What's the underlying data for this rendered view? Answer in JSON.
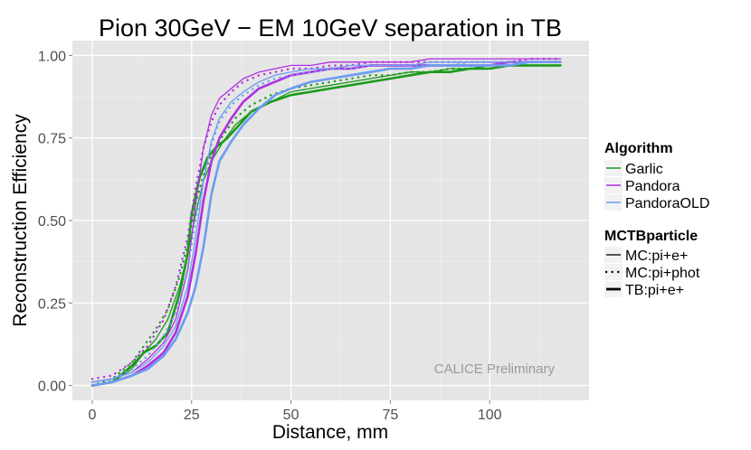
{
  "chart_data": {
    "type": "line",
    "title": "Pion 30GeV − EM 10GeV separation in TB",
    "xlabel": "Distance, mm",
    "ylabel": "Reconstruction Efficiency",
    "xlim": [
      -5,
      125
    ],
    "ylim": [
      -0.045,
      1.045
    ],
    "x_ticks": [
      0,
      25,
      50,
      75,
      100
    ],
    "x_tick_labels": [
      "0",
      "25",
      "50",
      "75",
      "100"
    ],
    "y_ticks": [
      0,
      0.25,
      0.5,
      0.75,
      1.0
    ],
    "y_tick_labels": [
      "0.00",
      "0.25",
      "0.50",
      "0.75",
      "1.00"
    ],
    "grid": true,
    "annotation": "CALICE Preliminary",
    "legend": {
      "position": "right",
      "algorithm_title": "Algorithm",
      "algorithm_items": [
        {
          "label": "Garlic",
          "color": "#1a9a1a"
        },
        {
          "label": "Pandora",
          "color": "#b030e0"
        },
        {
          "label": "PandoraOLD",
          "color": "#6b9cf0"
        }
      ],
      "particle_title": "MCTBparticle",
      "particle_items": [
        {
          "label": "MC:pi+e+",
          "style": "thin-solid"
        },
        {
          "label": "MC:pi+phot",
          "style": "dotted"
        },
        {
          "label": "TB:pi+e+",
          "style": "thick-solid"
        }
      ]
    },
    "series": [
      {
        "name": "Garlic MC:pi+e+",
        "algorithm": "Garlic",
        "particle": "MC:pi+e+",
        "color": "#1a9a1a",
        "style": "thin-solid",
        "x": [
          0,
          5,
          10,
          13,
          16,
          19,
          22,
          24,
          26,
          28,
          30,
          33,
          36,
          40,
          45,
          50,
          55,
          60,
          65,
          70,
          75,
          80,
          85,
          90,
          95,
          100,
          105,
          110,
          115,
          118
        ],
        "y": [
          0.0,
          0.01,
          0.05,
          0.1,
          0.14,
          0.2,
          0.3,
          0.4,
          0.52,
          0.62,
          0.68,
          0.74,
          0.79,
          0.83,
          0.86,
          0.89,
          0.9,
          0.91,
          0.92,
          0.93,
          0.94,
          0.95,
          0.95,
          0.96,
          0.96,
          0.97,
          0.97,
          0.97,
          0.97,
          0.97
        ]
      },
      {
        "name": "Garlic MC:pi+phot",
        "algorithm": "Garlic",
        "particle": "MC:pi+phot",
        "color": "#1a9a1a",
        "style": "dotted",
        "x": [
          0,
          5,
          10,
          13,
          16,
          19,
          22,
          24,
          26,
          28,
          30,
          33,
          36,
          40,
          45,
          50,
          55,
          60,
          65,
          70,
          75,
          80,
          85,
          90,
          95,
          100,
          105,
          110,
          115,
          118
        ],
        "y": [
          0.0,
          0.02,
          0.07,
          0.12,
          0.17,
          0.23,
          0.33,
          0.43,
          0.55,
          0.64,
          0.7,
          0.76,
          0.81,
          0.85,
          0.88,
          0.9,
          0.91,
          0.92,
          0.93,
          0.94,
          0.94,
          0.95,
          0.95,
          0.96,
          0.96,
          0.97,
          0.97,
          0.97,
          0.97,
          0.97
        ]
      },
      {
        "name": "Garlic TB:pi+e+",
        "algorithm": "Garlic",
        "particle": "TB:pi+e+",
        "color": "#1a9a1a",
        "style": "thick-solid",
        "x": [
          0,
          5,
          10,
          13,
          16,
          19,
          22,
          24,
          25,
          27,
          29,
          31,
          34,
          37,
          40,
          45,
          50,
          55,
          60,
          65,
          70,
          75,
          80,
          85,
          90,
          95,
          100,
          105,
          110,
          115,
          118
        ],
        "y": [
          0.0,
          0.01,
          0.06,
          0.1,
          0.12,
          0.16,
          0.28,
          0.4,
          0.52,
          0.63,
          0.69,
          0.72,
          0.75,
          0.79,
          0.83,
          0.86,
          0.88,
          0.89,
          0.9,
          0.91,
          0.92,
          0.93,
          0.94,
          0.95,
          0.95,
          0.96,
          0.96,
          0.97,
          0.97,
          0.97,
          0.97
        ]
      },
      {
        "name": "Pandora MC:pi+e+",
        "algorithm": "Pandora",
        "particle": "MC:pi+e+",
        "color": "#b030e0",
        "style": "thin-solid",
        "x": [
          0,
          5,
          10,
          14,
          18,
          21,
          24,
          26,
          28,
          30,
          32,
          35,
          38,
          42,
          46,
          50,
          55,
          60,
          65,
          70,
          75,
          80,
          85,
          90,
          95,
          100,
          105,
          110,
          115,
          118
        ],
        "y": [
          0.01,
          0.02,
          0.04,
          0.08,
          0.13,
          0.2,
          0.35,
          0.55,
          0.72,
          0.82,
          0.87,
          0.9,
          0.93,
          0.95,
          0.96,
          0.97,
          0.97,
          0.98,
          0.98,
          0.98,
          0.98,
          0.98,
          0.99,
          0.99,
          0.99,
          0.99,
          0.99,
          0.99,
          0.99,
          0.99
        ]
      },
      {
        "name": "Pandora MC:pi+phot",
        "algorithm": "Pandora",
        "particle": "MC:pi+phot",
        "color": "#b030e0",
        "style": "dotted",
        "x": [
          0,
          5,
          10,
          14,
          18,
          21,
          24,
          26,
          28,
          30,
          32,
          35,
          38,
          42,
          46,
          50,
          55,
          60,
          65,
          70,
          75,
          80,
          85,
          90,
          95,
          100,
          105,
          110,
          115,
          118
        ],
        "y": [
          0.02,
          0.03,
          0.07,
          0.12,
          0.2,
          0.3,
          0.45,
          0.6,
          0.72,
          0.8,
          0.85,
          0.89,
          0.92,
          0.94,
          0.95,
          0.96,
          0.96,
          0.97,
          0.97,
          0.98,
          0.98,
          0.98,
          0.98,
          0.98,
          0.98,
          0.98,
          0.98,
          0.99,
          0.99,
          0.99
        ]
      },
      {
        "name": "Pandora TB:pi+e+",
        "algorithm": "Pandora",
        "particle": "TB:pi+e+",
        "color": "#b030e0",
        "style": "thick-solid",
        "x": [
          0,
          5,
          10,
          14,
          18,
          21,
          24,
          26,
          28,
          30,
          32,
          35,
          38,
          42,
          46,
          50,
          55,
          60,
          65,
          70,
          75,
          80,
          85,
          90,
          95,
          100,
          105,
          110,
          115,
          118
        ],
        "y": [
          0.0,
          0.01,
          0.03,
          0.06,
          0.1,
          0.16,
          0.27,
          0.4,
          0.56,
          0.68,
          0.75,
          0.81,
          0.86,
          0.9,
          0.92,
          0.94,
          0.95,
          0.96,
          0.96,
          0.97,
          0.97,
          0.97,
          0.97,
          0.97,
          0.97,
          0.97,
          0.98,
          0.98,
          0.98,
          0.98
        ]
      },
      {
        "name": "PandoraOLD MC:pi+e+",
        "algorithm": "PandoraOLD",
        "particle": "MC:pi+e+",
        "color": "#6b9cf0",
        "style": "thin-solid",
        "x": [
          0,
          5,
          10,
          14,
          18,
          21,
          24,
          26,
          28,
          30,
          32,
          35,
          38,
          42,
          46,
          50,
          55,
          60,
          65,
          70,
          75,
          80,
          85,
          90,
          95,
          100,
          105,
          110,
          115,
          118
        ],
        "y": [
          0.01,
          0.02,
          0.04,
          0.07,
          0.12,
          0.18,
          0.3,
          0.45,
          0.62,
          0.74,
          0.81,
          0.86,
          0.89,
          0.92,
          0.94,
          0.95,
          0.96,
          0.96,
          0.97,
          0.97,
          0.97,
          0.97,
          0.98,
          0.98,
          0.98,
          0.98,
          0.98,
          0.98,
          0.98,
          0.98
        ]
      },
      {
        "name": "PandoraOLD MC:pi+phot",
        "algorithm": "PandoraOLD",
        "particle": "MC:pi+phot",
        "color": "#6b9cf0",
        "style": "dotted",
        "x": [
          0,
          5,
          10,
          14,
          18,
          21,
          24,
          26,
          28,
          30,
          32,
          35,
          38,
          42,
          46,
          50,
          55,
          60,
          65,
          70,
          75,
          80,
          85,
          90,
          95,
          100,
          105,
          110,
          115,
          118
        ],
        "y": [
          0.01,
          0.02,
          0.05,
          0.09,
          0.15,
          0.22,
          0.35,
          0.5,
          0.63,
          0.73,
          0.8,
          0.85,
          0.88,
          0.91,
          0.93,
          0.94,
          0.95,
          0.96,
          0.96,
          0.97,
          0.97,
          0.97,
          0.97,
          0.97,
          0.98,
          0.98,
          0.98,
          0.98,
          0.98,
          0.98
        ]
      },
      {
        "name": "PandoraOLD TB:pi+e+",
        "algorithm": "PandoraOLD",
        "particle": "TB:pi+e+",
        "color": "#6b9cf0",
        "style": "thick-solid",
        "x": [
          0,
          5,
          10,
          14,
          18,
          21,
          24,
          26,
          28,
          30,
          32,
          35,
          38,
          42,
          46,
          50,
          55,
          60,
          65,
          70,
          75,
          80,
          85,
          90,
          95,
          100,
          105,
          110,
          115,
          118
        ],
        "y": [
          0.0,
          0.01,
          0.03,
          0.05,
          0.09,
          0.14,
          0.22,
          0.3,
          0.42,
          0.58,
          0.68,
          0.74,
          0.79,
          0.84,
          0.88,
          0.9,
          0.92,
          0.93,
          0.94,
          0.95,
          0.96,
          0.96,
          0.97,
          0.97,
          0.97,
          0.97,
          0.97,
          0.98,
          0.98,
          0.98
        ]
      }
    ]
  }
}
